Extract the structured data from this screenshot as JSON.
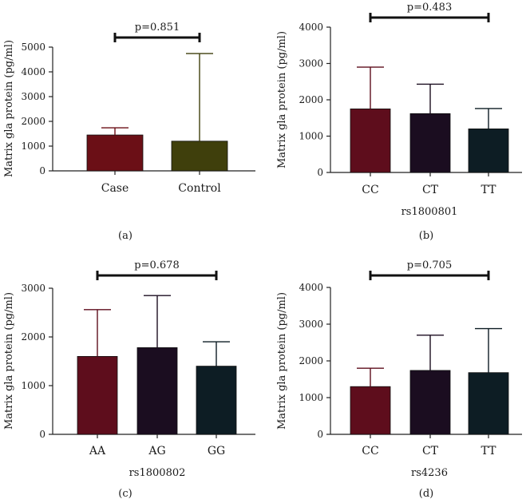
{
  "colors": {
    "bar_case": "#6b0f16",
    "bar_control": "#3f3f0c",
    "bar_g1": "#5e0d1c",
    "bar_g2": "#1b0d20",
    "bar_g3": "#0d1d24",
    "axis": "#222222"
  },
  "chart_data": [
    {
      "type": "bar",
      "panel": "(a)",
      "ylabel": "Matrix gla protein (pg/ml)",
      "xlabel": "",
      "ylim": [
        0,
        5000
      ],
      "yticks": [
        0,
        1000,
        2000,
        3000,
        4000,
        5000
      ],
      "categories": [
        "Case",
        "Control"
      ],
      "values": [
        1450,
        1200
      ],
      "errors": [
        1740,
        4740
      ],
      "p_value": "p=0.851",
      "bracket": [
        0,
        1
      ],
      "colors": [
        "#6b0f16",
        "#3f3f0c"
      ]
    },
    {
      "type": "bar",
      "panel": "(b)",
      "ylabel": "Matrix gla protein (pg/ml)",
      "xlabel": "rs1800801",
      "ylim": [
        0,
        4000
      ],
      "yticks": [
        0,
        1000,
        2000,
        3000,
        4000
      ],
      "categories": [
        "CC",
        "CT",
        "TT"
      ],
      "values": [
        1750,
        1620,
        1200
      ],
      "errors": [
        2900,
        2430,
        1760
      ],
      "p_value": "p=0.483",
      "bracket": [
        0,
        2
      ],
      "colors": [
        "#5e0d1c",
        "#1b0d20",
        "#0d1d24"
      ]
    },
    {
      "type": "bar",
      "panel": "(c)",
      "ylabel": "Matrix gla protein (pg/ml)",
      "xlabel": "rs1800802",
      "ylim": [
        0,
        3000
      ],
      "yticks": [
        0,
        1000,
        2000,
        3000
      ],
      "categories": [
        "AA",
        "AG",
        "GG"
      ],
      "values": [
        1600,
        1780,
        1400
      ],
      "errors": [
        2560,
        2850,
        1900
      ],
      "p_value": "p=0.678",
      "bracket": [
        0,
        2
      ],
      "colors": [
        "#5e0d1c",
        "#1b0d20",
        "#0d1d24"
      ]
    },
    {
      "type": "bar",
      "panel": "(d)",
      "ylabel": "Matrix gla protein (pg/ml)",
      "xlabel": "rs4236",
      "ylim": [
        0,
        4000
      ],
      "yticks": [
        0,
        1000,
        2000,
        3000,
        4000
      ],
      "categories": [
        "CC",
        "CT",
        "TT"
      ],
      "values": [
        1300,
        1740,
        1680
      ],
      "errors": [
        1800,
        2700,
        2880
      ],
      "p_value": "p=0.705",
      "bracket": [
        0,
        2
      ],
      "colors": [
        "#5e0d1c",
        "#1b0d20",
        "#0d1d24"
      ]
    }
  ]
}
